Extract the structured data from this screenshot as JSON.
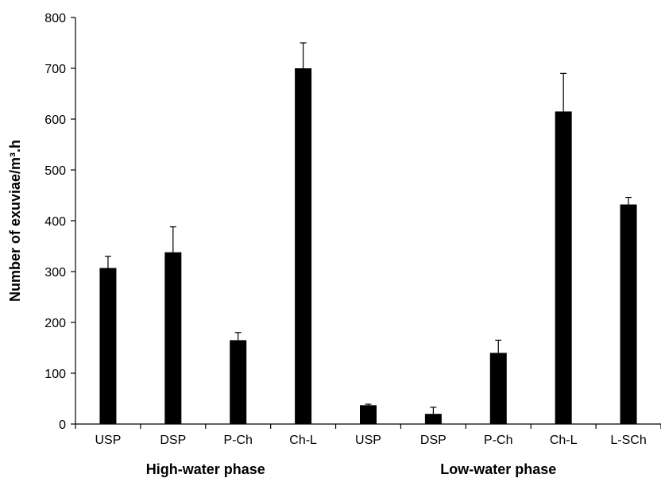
{
  "chart_data": {
    "type": "bar",
    "title": "",
    "xlabel": "",
    "ylabel": "Number of exuviae/m³.h",
    "ylim": [
      0,
      800
    ],
    "yticks": [
      0,
      100,
      200,
      300,
      400,
      500,
      600,
      700,
      800
    ],
    "grid": false,
    "legend": "none",
    "bar_color": "#000000",
    "categories": [
      "USP",
      "DSP",
      "P-Ch",
      "Ch-L",
      "USP",
      "DSP",
      "P-Ch",
      "Ch-L",
      "L-SCh"
    ],
    "values": [
      307,
      338,
      165,
      700,
      37,
      20,
      140,
      615,
      432
    ],
    "error_plus": [
      23,
      50,
      15,
      50,
      2,
      13,
      25,
      75,
      14
    ],
    "groups": [
      {
        "label": "High-water phase",
        "start": 0,
        "end": 3
      },
      {
        "label": "Low-water phase",
        "start": 4,
        "end": 8
      }
    ]
  }
}
